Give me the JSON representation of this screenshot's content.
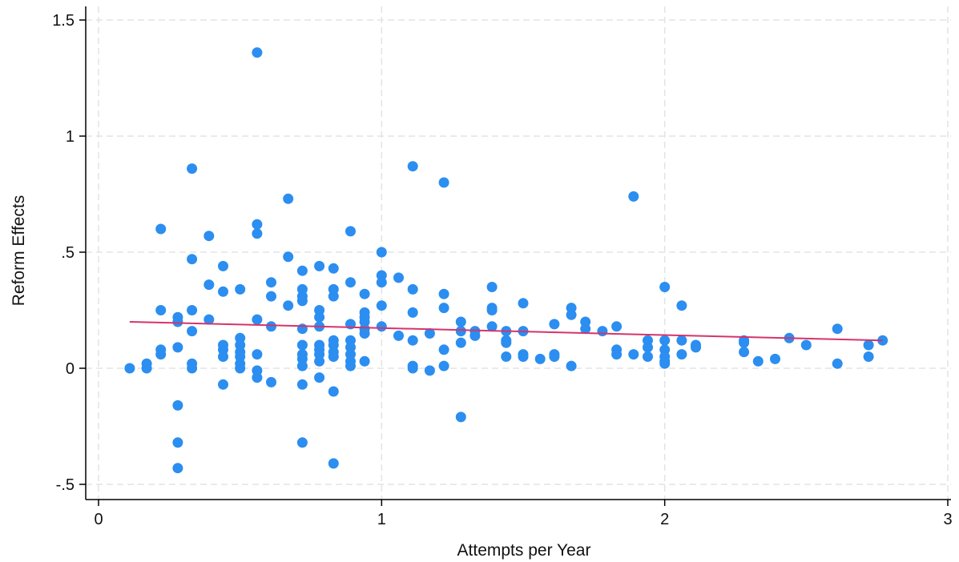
{
  "chart_data": {
    "type": "scatter",
    "xlabel": "Attempts per Year",
    "ylabel": "Reform Effects",
    "xlim": [
      0,
      3
    ],
    "ylim": [
      -0.5,
      1.5
    ],
    "xticks": [
      0,
      1,
      2,
      3
    ],
    "xtick_labels": [
      "0",
      "1",
      "2",
      "3"
    ],
    "yticks": [
      -0.5,
      0,
      0.5,
      1,
      1.5
    ],
    "ytick_labels": [
      "-.5",
      "0",
      ".5",
      "1",
      "1.5"
    ],
    "grid": true,
    "point_color": "#2b8ef0",
    "line_color": "#d6336c",
    "fit_line": {
      "x": [
        0.11,
        2.77
      ],
      "y": [
        0.2,
        0.12
      ]
    },
    "points": [
      [
        0.11,
        0.0
      ],
      [
        0.17,
        0.02
      ],
      [
        0.17,
        0.0
      ],
      [
        0.22,
        0.6
      ],
      [
        0.22,
        0.25
      ],
      [
        0.22,
        0.08
      ],
      [
        0.22,
        0.06
      ],
      [
        0.28,
        0.22
      ],
      [
        0.28,
        0.2
      ],
      [
        0.28,
        0.09
      ],
      [
        0.28,
        -0.16
      ],
      [
        0.28,
        -0.32
      ],
      [
        0.28,
        -0.43
      ],
      [
        0.33,
        0.86
      ],
      [
        0.33,
        0.47
      ],
      [
        0.33,
        0.25
      ],
      [
        0.33,
        0.16
      ],
      [
        0.33,
        0.02
      ],
      [
        0.33,
        0.0
      ],
      [
        0.39,
        0.57
      ],
      [
        0.39,
        0.36
      ],
      [
        0.39,
        0.21
      ],
      [
        0.44,
        0.44
      ],
      [
        0.44,
        0.33
      ],
      [
        0.44,
        0.1
      ],
      [
        0.44,
        0.08
      ],
      [
        0.44,
        0.05
      ],
      [
        0.44,
        -0.07
      ],
      [
        0.5,
        0.34
      ],
      [
        0.5,
        0.13
      ],
      [
        0.5,
        0.1
      ],
      [
        0.5,
        0.07
      ],
      [
        0.5,
        0.05
      ],
      [
        0.5,
        0.02
      ],
      [
        0.5,
        0.0
      ],
      [
        0.56,
        1.36
      ],
      [
        0.56,
        0.62
      ],
      [
        0.56,
        0.58
      ],
      [
        0.56,
        0.21
      ],
      [
        0.56,
        0.06
      ],
      [
        0.56,
        -0.01
      ],
      [
        0.56,
        -0.04
      ],
      [
        0.61,
        0.37
      ],
      [
        0.61,
        0.31
      ],
      [
        0.61,
        0.18
      ],
      [
        0.61,
        -0.06
      ],
      [
        0.67,
        0.73
      ],
      [
        0.67,
        0.48
      ],
      [
        0.67,
        0.27
      ],
      [
        0.72,
        0.42
      ],
      [
        0.72,
        0.34
      ],
      [
        0.72,
        0.31
      ],
      [
        0.72,
        0.29
      ],
      [
        0.72,
        0.17
      ],
      [
        0.72,
        0.1
      ],
      [
        0.72,
        0.06
      ],
      [
        0.72,
        0.04
      ],
      [
        0.72,
        0.01
      ],
      [
        0.72,
        -0.07
      ],
      [
        0.72,
        -0.32
      ],
      [
        0.78,
        0.44
      ],
      [
        0.78,
        0.25
      ],
      [
        0.78,
        0.22
      ],
      [
        0.78,
        0.18
      ],
      [
        0.78,
        0.1
      ],
      [
        0.78,
        0.08
      ],
      [
        0.78,
        0.06
      ],
      [
        0.78,
        0.03
      ],
      [
        0.78,
        -0.04
      ],
      [
        0.83,
        0.43
      ],
      [
        0.83,
        0.34
      ],
      [
        0.83,
        0.31
      ],
      [
        0.83,
        0.12
      ],
      [
        0.83,
        0.1
      ],
      [
        0.83,
        0.07
      ],
      [
        0.83,
        0.05
      ],
      [
        0.83,
        -0.1
      ],
      [
        0.83,
        -0.41
      ],
      [
        0.89,
        0.59
      ],
      [
        0.89,
        0.37
      ],
      [
        0.89,
        0.19
      ],
      [
        0.89,
        0.12
      ],
      [
        0.89,
        0.09
      ],
      [
        0.89,
        0.06
      ],
      [
        0.89,
        0.03
      ],
      [
        0.89,
        0.01
      ],
      [
        0.94,
        0.32
      ],
      [
        0.94,
        0.24
      ],
      [
        0.94,
        0.22
      ],
      [
        0.94,
        0.2
      ],
      [
        0.94,
        0.17
      ],
      [
        0.94,
        0.15
      ],
      [
        0.94,
        0.03
      ],
      [
        1.0,
        0.5
      ],
      [
        1.0,
        0.4
      ],
      [
        1.0,
        0.37
      ],
      [
        1.0,
        0.27
      ],
      [
        1.0,
        0.18
      ],
      [
        1.06,
        0.39
      ],
      [
        1.06,
        0.14
      ],
      [
        1.11,
        0.87
      ],
      [
        1.11,
        0.34
      ],
      [
        1.11,
        0.24
      ],
      [
        1.11,
        0.12
      ],
      [
        1.11,
        0.01
      ],
      [
        1.11,
        0.0
      ],
      [
        1.17,
        0.15
      ],
      [
        1.17,
        -0.01
      ],
      [
        1.22,
        0.8
      ],
      [
        1.22,
        0.32
      ],
      [
        1.22,
        0.26
      ],
      [
        1.22,
        0.08
      ],
      [
        1.22,
        0.01
      ],
      [
        1.28,
        0.2
      ],
      [
        1.28,
        0.16
      ],
      [
        1.28,
        0.11
      ],
      [
        1.28,
        -0.21
      ],
      [
        1.33,
        0.16
      ],
      [
        1.33,
        0.14
      ],
      [
        1.39,
        0.35
      ],
      [
        1.39,
        0.26
      ],
      [
        1.39,
        0.25
      ],
      [
        1.39,
        0.18
      ],
      [
        1.44,
        0.16
      ],
      [
        1.44,
        0.12
      ],
      [
        1.44,
        0.11
      ],
      [
        1.44,
        0.05
      ],
      [
        1.5,
        0.28
      ],
      [
        1.5,
        0.16
      ],
      [
        1.5,
        0.06
      ],
      [
        1.5,
        0.05
      ],
      [
        1.56,
        0.04
      ],
      [
        1.61,
        0.19
      ],
      [
        1.61,
        0.06
      ],
      [
        1.61,
        0.05
      ],
      [
        1.67,
        0.26
      ],
      [
        1.67,
        0.23
      ],
      [
        1.67,
        0.01
      ],
      [
        1.72,
        0.2
      ],
      [
        1.72,
        0.17
      ],
      [
        1.78,
        0.16
      ],
      [
        1.83,
        0.18
      ],
      [
        1.83,
        0.08
      ],
      [
        1.83,
        0.06
      ],
      [
        1.89,
        0.74
      ],
      [
        1.89,
        0.06
      ],
      [
        1.94,
        0.12
      ],
      [
        1.94,
        0.09
      ],
      [
        1.94,
        0.05
      ],
      [
        2.0,
        0.35
      ],
      [
        2.0,
        0.12
      ],
      [
        2.0,
        0.08
      ],
      [
        2.0,
        0.05
      ],
      [
        2.0,
        0.03
      ],
      [
        2.0,
        0.02
      ],
      [
        2.06,
        0.27
      ],
      [
        2.06,
        0.12
      ],
      [
        2.06,
        0.06
      ],
      [
        2.11,
        0.1
      ],
      [
        2.11,
        0.09
      ],
      [
        2.28,
        0.12
      ],
      [
        2.28,
        0.11
      ],
      [
        2.28,
        0.07
      ],
      [
        2.33,
        0.03
      ],
      [
        2.39,
        0.04
      ],
      [
        2.44,
        0.13
      ],
      [
        2.5,
        0.1
      ],
      [
        2.61,
        0.17
      ],
      [
        2.61,
        0.02
      ],
      [
        2.72,
        0.1
      ],
      [
        2.72,
        0.05
      ],
      [
        2.77,
        0.12
      ]
    ]
  }
}
